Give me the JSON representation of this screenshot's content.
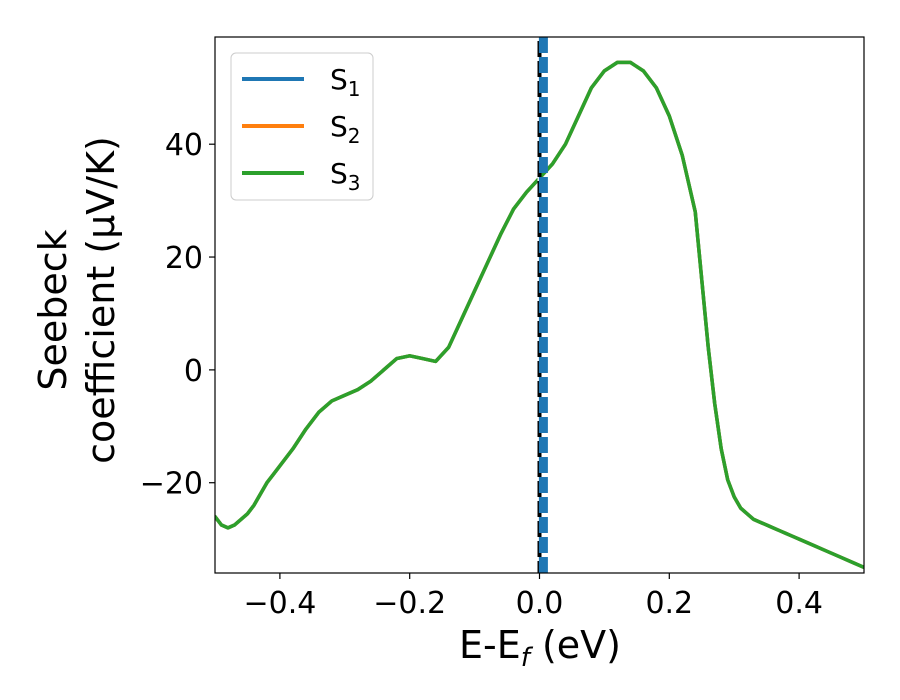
{
  "chart_data": {
    "type": "line",
    "title": "",
    "xlabel": "E-E",
    "xlabel_sub": "f",
    "xlabel_unit": " (eV)",
    "ylabel_line1": "Seebeck",
    "ylabel_line2": "coefficient  (μV/K)",
    "xlim": [
      -0.5,
      0.5
    ],
    "ylim": [
      -36,
      59
    ],
    "xticks": [
      -0.4,
      -0.2,
      0.0,
      0.2,
      0.4
    ],
    "xtick_labels": [
      "−0.4",
      "−0.2",
      "0.0",
      "0.2",
      "0.4"
    ],
    "yticks": [
      -20,
      0,
      20,
      40
    ],
    "ytick_labels": [
      "−20",
      "0",
      "20",
      "40"
    ],
    "grid": false,
    "legend_position": "top-left",
    "vlines": [
      {
        "x": 0.0,
        "style": "black-white-dashed"
      },
      {
        "x": 0.006,
        "style": "blue-dashed",
        "color": "#1f77b4"
      }
    ],
    "series": [
      {
        "name": "S",
        "sub": "1",
        "color": "#1f77b4",
        "x": [
          -0.5,
          -0.49,
          -0.48,
          -0.47,
          -0.46,
          -0.45,
          -0.44,
          -0.43,
          -0.42,
          -0.41,
          -0.4,
          -0.38,
          -0.36,
          -0.34,
          -0.32,
          -0.3,
          -0.28,
          -0.26,
          -0.24,
          -0.22,
          -0.2,
          -0.18,
          -0.16,
          -0.14,
          -0.12,
          -0.1,
          -0.08,
          -0.06,
          -0.04,
          -0.02,
          0.0,
          0.02,
          0.04,
          0.06,
          0.08,
          0.1,
          0.12,
          0.14,
          0.16,
          0.18,
          0.2,
          0.22,
          0.24,
          0.25,
          0.26,
          0.27,
          0.28,
          0.29,
          0.3,
          0.31,
          0.32,
          0.33,
          0.34,
          0.35,
          0.36,
          0.37,
          0.38,
          0.39,
          0.4,
          0.42,
          0.44,
          0.46,
          0.48,
          0.5
        ],
        "y": [
          -26,
          -27.5,
          -28,
          -27.5,
          -26.5,
          -25.5,
          -24,
          -22,
          -20,
          -18.5,
          -17,
          -14,
          -10.5,
          -7.5,
          -5.5,
          -4.5,
          -3.5,
          -2,
          0,
          2,
          2.5,
          2,
          1.5,
          4,
          9,
          14,
          19,
          24,
          28.5,
          31.5,
          34,
          36.5,
          40,
          45,
          50,
          53,
          54.5,
          54.5,
          53,
          50,
          45,
          38,
          28,
          16,
          4,
          -6,
          -14,
          -19.5,
          -22.5,
          -24.5,
          -25.5,
          -26.5,
          -27,
          -27.5,
          -28,
          -28.5,
          -29,
          -29.5,
          -30,
          -31,
          -32,
          -33,
          -34,
          -35
        ]
      },
      {
        "name": "S",
        "sub": "2",
        "color": "#ff7f0e",
        "x": [
          -0.5,
          -0.49,
          -0.48,
          -0.47,
          -0.46,
          -0.45,
          -0.44,
          -0.43,
          -0.42,
          -0.41,
          -0.4,
          -0.38,
          -0.36,
          -0.34,
          -0.32,
          -0.3,
          -0.28,
          -0.26,
          -0.24,
          -0.22,
          -0.2,
          -0.18,
          -0.16,
          -0.14,
          -0.12,
          -0.1,
          -0.08,
          -0.06,
          -0.04,
          -0.02,
          0.0,
          0.02,
          0.04,
          0.06,
          0.08,
          0.1,
          0.12,
          0.14,
          0.16,
          0.18,
          0.2,
          0.22,
          0.24,
          0.25,
          0.26,
          0.27,
          0.28,
          0.29,
          0.3,
          0.31,
          0.32,
          0.33,
          0.34,
          0.35,
          0.36,
          0.37,
          0.38,
          0.39,
          0.4,
          0.42,
          0.44,
          0.46,
          0.48,
          0.5
        ],
        "y": [
          -26,
          -27.5,
          -28,
          -27.5,
          -26.5,
          -25.5,
          -24,
          -22,
          -20,
          -18.5,
          -17,
          -14,
          -10.5,
          -7.5,
          -5.5,
          -4.5,
          -3.5,
          -2,
          0,
          2,
          2.5,
          2,
          1.5,
          4,
          9,
          14,
          19,
          24,
          28.5,
          31.5,
          34,
          36.5,
          40,
          45,
          50,
          53,
          54.5,
          54.5,
          53,
          50,
          45,
          38,
          28,
          16,
          4,
          -6,
          -14,
          -19.5,
          -22.5,
          -24.5,
          -25.5,
          -26.5,
          -27,
          -27.5,
          -28,
          -28.5,
          -29,
          -29.5,
          -30,
          -31,
          -32,
          -33,
          -34,
          -35
        ]
      },
      {
        "name": "S",
        "sub": "3",
        "color": "#2ca02c",
        "x": [
          -0.5,
          -0.49,
          -0.48,
          -0.47,
          -0.46,
          -0.45,
          -0.44,
          -0.43,
          -0.42,
          -0.41,
          -0.4,
          -0.38,
          -0.36,
          -0.34,
          -0.32,
          -0.3,
          -0.28,
          -0.26,
          -0.24,
          -0.22,
          -0.2,
          -0.18,
          -0.16,
          -0.14,
          -0.12,
          -0.1,
          -0.08,
          -0.06,
          -0.04,
          -0.02,
          0.0,
          0.02,
          0.04,
          0.06,
          0.08,
          0.1,
          0.12,
          0.14,
          0.16,
          0.18,
          0.2,
          0.22,
          0.24,
          0.25,
          0.26,
          0.27,
          0.28,
          0.29,
          0.3,
          0.31,
          0.32,
          0.33,
          0.34,
          0.35,
          0.36,
          0.37,
          0.38,
          0.39,
          0.4,
          0.42,
          0.44,
          0.46,
          0.48,
          0.5
        ],
        "y": [
          -26,
          -27.5,
          -28,
          -27.5,
          -26.5,
          -25.5,
          -24,
          -22,
          -20,
          -18.5,
          -17,
          -14,
          -10.5,
          -7.5,
          -5.5,
          -4.5,
          -3.5,
          -2,
          0,
          2,
          2.5,
          2,
          1.5,
          4,
          9,
          14,
          19,
          24,
          28.5,
          31.5,
          34,
          36.5,
          40,
          45,
          50,
          53,
          54.5,
          54.5,
          53,
          50,
          45,
          38,
          28,
          16,
          4,
          -6,
          -14,
          -19.5,
          -22.5,
          -24.5,
          -25.5,
          -26.5,
          -27,
          -27.5,
          -28,
          -28.5,
          -29,
          -29.5,
          -30,
          -31,
          -32,
          -33,
          -34,
          -35
        ]
      }
    ]
  }
}
